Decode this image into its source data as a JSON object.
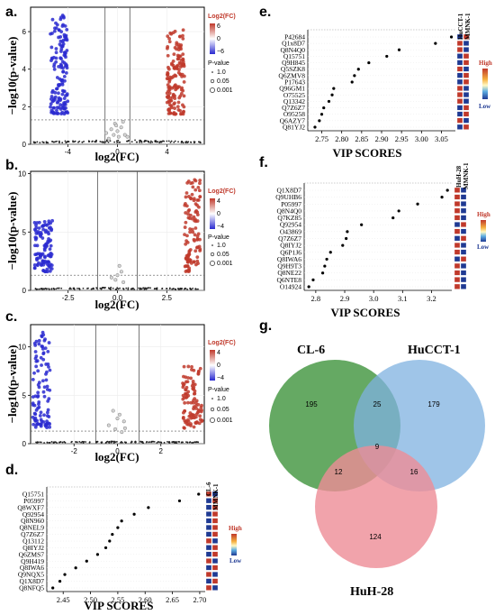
{
  "panels": {
    "a": "a.",
    "b": "b.",
    "c": "c.",
    "d": "d.",
    "e": "e.",
    "f": "f.",
    "g": "g."
  },
  "colors": {
    "up": "#c0392b",
    "down": "#2a2ad0",
    "ns": "#9a9a9a",
    "high": "#c0392b",
    "low": "#1f3a93",
    "venn_a": "#4a9a48",
    "venn_b": "#7fb2e0",
    "venn_c": "#ee8c96"
  },
  "chart_data": [
    {
      "id": "a",
      "type": "scatter",
      "xlabel": "log2(FC)",
      "ylabel": "−log10(p-value)",
      "xticks": [
        "-4",
        "0",
        "4"
      ],
      "xtick_values": [
        -4,
        0,
        4
      ],
      "yticks": [
        "0",
        "2",
        "4",
        "6"
      ],
      "ytick_values": [
        0,
        2,
        4,
        6
      ],
      "xlim": [
        -7,
        7
      ],
      "ylim": [
        0,
        7.3
      ],
      "vlines": [
        -1,
        1
      ],
      "hline": 1.3,
      "legend": {
        "fc_title": "Log2(FC)",
        "fc_ticks": [
          "6",
          "0",
          "−6"
        ],
        "p_title": "P-value",
        "p_ticks": [
          "1.0",
          "0.05",
          "0.001"
        ]
      },
      "up": {
        "x_range": [
          4.0,
          5.4
        ],
        "y_range": [
          1.6,
          6.1
        ],
        "n": 150
      },
      "down": {
        "x_range": [
          -5.4,
          -4.0
        ],
        "y_range": [
          1.6,
          7.0
        ],
        "n": 150
      },
      "ns": [
        [
          -0.9,
          0.6
        ],
        [
          -0.5,
          0.8
        ],
        [
          -0.2,
          1.1
        ],
        [
          0.3,
          0.9
        ],
        [
          0.6,
          0.5
        ],
        [
          0.0,
          0.7
        ],
        [
          -0.7,
          0.3
        ],
        [
          0.8,
          0.4
        ],
        [
          0.1,
          0.4
        ],
        [
          -0.3,
          0.5
        ],
        [
          0.45,
          1.2
        ],
        [
          -0.1,
          1.0
        ]
      ]
    },
    {
      "id": "b",
      "type": "scatter",
      "xlabel": "log2(FC)",
      "ylabel": "−log10(p-value)",
      "xticks": [
        "-2.5",
        "0.0",
        "2.5"
      ],
      "xtick_values": [
        -2.5,
        0,
        2.5
      ],
      "yticks": [
        "0",
        "5",
        "10"
      ],
      "ytick_values": [
        0,
        5,
        10
      ],
      "xlim": [
        -4.4,
        4.4
      ],
      "ylim": [
        0,
        10.2
      ],
      "vlines": [
        -1,
        1
      ],
      "hline": 1.3,
      "legend": {
        "fc_title": "Log2(FC)",
        "fc_ticks": [
          "4",
          "0",
          "−4"
        ],
        "p_title": "P-value",
        "p_ticks": [
          "1.0",
          "0.05",
          "0.001"
        ]
      },
      "up": {
        "x_range": [
          3.4,
          4.2
        ],
        "y_range": [
          1.6,
          9.6
        ],
        "n": 110
      },
      "down": {
        "x_range": [
          -4.2,
          -3.3
        ],
        "y_range": [
          1.6,
          6.0
        ],
        "n": 110
      },
      "ns": [
        [
          -0.3,
          1.1
        ],
        [
          0.1,
          2.1
        ],
        [
          0.2,
          1.6
        ],
        [
          -0.1,
          0.9
        ],
        [
          0.3,
          0.7
        ],
        [
          0.0,
          1.3
        ]
      ]
    },
    {
      "id": "c",
      "type": "scatter",
      "xlabel": "log2(FC)",
      "ylabel": "−log10(p-value)",
      "xticks": [
        "-2",
        "0",
        "2"
      ],
      "xtick_values": [
        -2,
        0,
        2
      ],
      "yticks": [
        "0",
        "5",
        "10"
      ],
      "ytick_values": [
        0,
        5,
        10
      ],
      "xlim": [
        -4.0,
        4.0
      ],
      "ylim": [
        0,
        12.3
      ],
      "vlines": [
        -1,
        1
      ],
      "hline": 1.3,
      "legend": {
        "fc_title": "Log2(FC)",
        "fc_ticks": [
          "4",
          "0",
          "−4"
        ],
        "p_title": "P-value",
        "p_ticks": [
          "1.0",
          "0.05",
          "0.001"
        ]
      },
      "up": {
        "x_range": [
          3.0,
          3.9
        ],
        "y_range": [
          1.6,
          8.0
        ],
        "n": 100
      },
      "down": {
        "x_range": [
          -3.9,
          -3.1
        ],
        "y_range": [
          1.6,
          11.8
        ],
        "n": 100
      },
      "ns": [
        [
          -0.2,
          3.4
        ],
        [
          0.1,
          3.0
        ],
        [
          0.3,
          2.3
        ],
        [
          -0.4,
          1.9
        ],
        [
          0.0,
          2.6
        ],
        [
          -0.1,
          1.5
        ],
        [
          0.35,
          1.6
        ],
        [
          0.2,
          1.2
        ]
      ]
    },
    {
      "id": "d",
      "type": "scatter",
      "title_groups": [
        "CL-6",
        "MMNK-1"
      ],
      "xlabel": "VIP SCORES",
      "xticks": [
        "2.45",
        "2.50",
        "2.55",
        "2.60",
        "2.65",
        "2.70"
      ],
      "xtick_values": [
        2.45,
        2.5,
        2.55,
        2.6,
        2.65,
        2.7
      ],
      "xlim": [
        2.42,
        2.71
      ],
      "proteins": [
        "Q15751",
        "P05997",
        "Q8WXF7",
        "Q92954",
        "Q8N960",
        "Q8NEL9",
        "Q7Z6Z7",
        "Q13112",
        "Q8IYJ2",
        "Q6ZMS7",
        "Q9H419",
        "Q8IWA6",
        "Q9NQX5",
        "Q1X8D7",
        "Q8NFQ5"
      ],
      "vip": [
        2.698,
        2.663,
        2.606,
        2.58,
        2.557,
        2.55,
        2.54,
        2.535,
        2.528,
        2.513,
        2.493,
        2.473,
        2.453,
        2.444,
        2.431
      ],
      "heat": [
        [
          "up",
          "down"
        ],
        [
          "down",
          "up"
        ],
        [
          "down",
          "up"
        ],
        [
          "down",
          "up"
        ],
        [
          "down",
          "up"
        ],
        [
          "down",
          "up"
        ],
        [
          "down",
          "up"
        ],
        [
          "up",
          "down"
        ],
        [
          "down",
          "up"
        ],
        [
          "down",
          "up"
        ],
        [
          "up",
          "down"
        ],
        [
          "down",
          "up"
        ],
        [
          "up",
          "down"
        ],
        [
          "down",
          "up"
        ],
        [
          "up",
          "down"
        ]
      ],
      "scale": {
        "high": "High",
        "low": "Low"
      }
    },
    {
      "id": "e",
      "type": "scatter",
      "title_groups": [
        "HuCCT-1",
        "MMNK-1"
      ],
      "xlabel": "VIP SCORES",
      "xticks": [
        "2.75",
        "2.80",
        "2.85",
        "2.90",
        "2.95",
        "3.00",
        "3.05"
      ],
      "xtick_values": [
        2.75,
        2.8,
        2.85,
        2.9,
        2.95,
        3.0,
        3.05
      ],
      "xlim": [
        2.715,
        3.085
      ],
      "proteins": [
        "P42684",
        "Q1x8D7",
        "Q8N4Q0",
        "Q15751",
        "Q9H845",
        "Q5SZK8",
        "Q6ZMV8",
        "P17643",
        "Q96GM1",
        "O75525",
        "Q13342",
        "Q7Z6Z7",
        "O95258",
        "Q6AZY7",
        "Q81YJ2"
      ],
      "vip": [
        3.075,
        3.035,
        2.944,
        2.913,
        2.868,
        2.842,
        2.832,
        2.826,
        2.78,
        2.776,
        2.768,
        2.755,
        2.75,
        2.744,
        2.733
      ],
      "heat": [
        [
          "down",
          "up"
        ],
        [
          "up",
          "down"
        ],
        [
          "up",
          "down"
        ],
        [
          "down",
          "up"
        ],
        [
          "down",
          "up"
        ],
        [
          "up",
          "down"
        ],
        [
          "down",
          "up"
        ],
        [
          "down",
          "up"
        ],
        [
          "up",
          "down"
        ],
        [
          "up",
          "down"
        ],
        [
          "up",
          "down"
        ],
        [
          "down",
          "up"
        ],
        [
          "down",
          "up"
        ],
        [
          "up",
          "down"
        ],
        [
          "down",
          "up"
        ]
      ],
      "scale": {
        "high": "High",
        "low": "Low"
      }
    },
    {
      "id": "f",
      "type": "scatter",
      "title_groups": [
        "HuH-28",
        "MMNK-1"
      ],
      "xlabel": "VIP SCORES",
      "xticks": [
        "2.8",
        "2.9",
        "3.0",
        "3.1",
        "3.2"
      ],
      "xtick_values": [
        2.8,
        2.9,
        3.0,
        3.1,
        3.2
      ],
      "xlim": [
        2.76,
        3.27
      ],
      "proteins": [
        "Q1X8D7",
        "Q9UHB6",
        "P05997",
        "Q8N4Q0",
        "Q7KZ85",
        "Q92954",
        "O43869",
        "Q7Z6Z7",
        "Q8IYJ2",
        "Q6P1J6",
        "Q8IWA6",
        "Q9H9T3",
        "Q8NE22",
        "Q6NTE8",
        "O14924"
      ],
      "vip": [
        3.255,
        3.236,
        3.152,
        3.087,
        3.067,
        2.958,
        2.909,
        2.905,
        2.893,
        2.851,
        2.838,
        2.831,
        2.824,
        2.791,
        2.776
      ],
      "heat": [
        [
          "up",
          "down"
        ],
        [
          "up",
          "down"
        ],
        [
          "up",
          "down"
        ],
        [
          "up",
          "down"
        ],
        [
          "up",
          "down"
        ],
        [
          "down",
          "up"
        ],
        [
          "up",
          "down"
        ],
        [
          "down",
          "up"
        ],
        [
          "up",
          "down"
        ],
        [
          "up",
          "down"
        ],
        [
          "down",
          "up"
        ],
        [
          "up",
          "down"
        ],
        [
          "up",
          "down"
        ],
        [
          "up",
          "down"
        ],
        [
          "up",
          "down"
        ]
      ],
      "scale": {
        "high": "High",
        "low": "Low"
      }
    },
    {
      "id": "g",
      "type": "venn",
      "sets": [
        "CL-6",
        "HuCCT-1",
        "HuH-28"
      ],
      "only_a": 195,
      "ab": 25,
      "only_b": 179,
      "abc": 9,
      "ac": 12,
      "bc": 16,
      "only_c": 124
    }
  ]
}
